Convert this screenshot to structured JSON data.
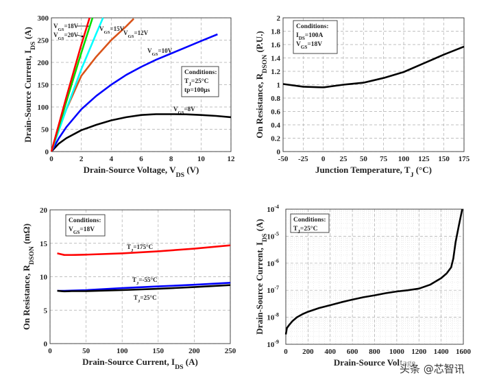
{
  "chart_data": [
    {
      "type": "line",
      "xlabel": [
        "Drain-Source Voltage, V",
        [
          "DS"
        ],
        " (V)"
      ],
      "ylabel": [
        "Drain-Source Current, I",
        [
          "DS"
        ],
        " (A)"
      ],
      "xlim": [
        0,
        12
      ],
      "ylim": [
        0,
        300
      ],
      "xticks": [
        0,
        2,
        4,
        6,
        8,
        10,
        12
      ],
      "yticks": [
        0,
        50,
        100,
        150,
        200,
        250,
        300
      ],
      "grid": true,
      "conditions": [
        [
          "Conditions:"
        ],
        [
          "T",
          [
            "J"
          ],
          "=25°C"
        ],
        [
          "tp=100μs"
        ]
      ],
      "series": [
        {
          "name": [
            "V",
            [
              "GS"
            ],
            "=8V"
          ],
          "color": "#000000",
          "x": [
            0,
            0.5,
            1,
            2,
            3,
            4,
            5,
            6,
            7,
            8,
            9,
            10,
            11,
            12
          ],
          "y": [
            0,
            18,
            30,
            48,
            60,
            70,
            77,
            82,
            84,
            84,
            83.5,
            82,
            80,
            77
          ]
        },
        {
          "name": [
            "V",
            [
              "GS"
            ],
            "=10V"
          ],
          "color": "#0000ff",
          "x": [
            0,
            0.5,
            1,
            2,
            3,
            4,
            5,
            6,
            7,
            8,
            9,
            10,
            11.1
          ],
          "y": [
            0,
            30,
            55,
            95,
            125,
            150,
            172,
            190,
            206,
            220,
            234,
            248,
            263
          ]
        },
        {
          "name": [
            "V",
            [
              "GS"
            ],
            "=12V"
          ],
          "color": "#d95319",
          "x": [
            0,
            0.5,
            1,
            2,
            3,
            4,
            5,
            5.5
          ],
          "y": [
            0,
            52,
            95,
            170,
            213,
            250,
            281,
            298
          ]
        },
        {
          "name": [
            "V",
            [
              "GS"
            ],
            "=15V"
          ],
          "color": "#00ffff",
          "x": [
            0,
            1,
            2,
            3,
            3.45
          ],
          "y": [
            0,
            95,
            185,
            265,
            300
          ]
        },
        {
          "name": [
            "V",
            [
              "GS"
            ],
            "=18V"
          ],
          "color": "#00dd00",
          "x": [
            0,
            1,
            2,
            2.75
          ],
          "y": [
            0,
            112,
            222,
            300
          ]
        },
        {
          "name": [
            "V",
            [
              "GS"
            ],
            "=20V"
          ],
          "color": "#ff0000",
          "x": [
            0,
            1,
            2,
            2.55
          ],
          "y": [
            0,
            122,
            240,
            300
          ]
        }
      ]
    },
    {
      "type": "line",
      "xlabel": [
        "Junction Temperature, T",
        [
          "J"
        ],
        " (°C)"
      ],
      "ylabel": [
        "On Resistance, R",
        [
          "DSON"
        ],
        " (P.U.)"
      ],
      "xlim": [
        -50,
        175
      ],
      "ylim": [
        0,
        2
      ],
      "xticks": [
        -50,
        -25,
        0,
        25,
        50,
        75,
        100,
        125,
        150,
        175
      ],
      "yticks": [
        0,
        0.2,
        0.4,
        0.6,
        0.8,
        1,
        1.2,
        1.4,
        1.6,
        1.8,
        2
      ],
      "grid": true,
      "conditions": [
        [
          "Conditions:"
        ],
        [
          "I",
          [
            "DS"
          ],
          "=100A"
        ],
        [
          "V",
          [
            "GS"
          ],
          "=18V"
        ]
      ],
      "series": [
        {
          "color": "#000000",
          "x": [
            -50,
            -25,
            0,
            25,
            50,
            75,
            100,
            125,
            150,
            175
          ],
          "y": [
            1.01,
            0.97,
            0.96,
            1.0,
            1.03,
            1.1,
            1.19,
            1.32,
            1.45,
            1.57
          ]
        }
      ]
    },
    {
      "type": "line",
      "xlabel": [
        "Drain-Source Current, I",
        [
          "DS"
        ],
        " (A)"
      ],
      "ylabel": [
        "On Resistance, R",
        [
          "DSON"
        ],
        " (mΩ)"
      ],
      "xlim": [
        0,
        250
      ],
      "ylim": [
        0,
        20
      ],
      "xticks": [
        0,
        50,
        100,
        150,
        200,
        250
      ],
      "yticks": [
        0,
        5,
        10,
        15,
        20
      ],
      "grid": true,
      "conditions": [
        [
          "Conditions:"
        ],
        [
          "V",
          [
            "GS"
          ],
          "=18V"
        ]
      ],
      "series": [
        {
          "name": [
            "T",
            [
              "J"
            ],
            "=175°C"
          ],
          "color": "#ff0000",
          "x": [
            10,
            20,
            30,
            50,
            100,
            150,
            200,
            250
          ],
          "y": [
            13.5,
            13.25,
            13.25,
            13.3,
            13.5,
            13.8,
            14.2,
            14.7
          ]
        },
        {
          "name": [
            "T",
            [
              "J"
            ],
            "=-55°C"
          ],
          "color": "#0000ff",
          "x": [
            10,
            20,
            50,
            100,
            150,
            200,
            250
          ],
          "y": [
            7.9,
            7.9,
            8.0,
            8.3,
            8.55,
            8.8,
            9.1
          ]
        },
        {
          "name": [
            "T",
            [
              "J"
            ],
            "=25°C"
          ],
          "color": "#000000",
          "x": [
            10,
            20,
            30,
            50,
            100,
            150,
            200,
            250
          ],
          "y": [
            7.9,
            7.8,
            7.85,
            7.85,
            8.0,
            8.2,
            8.45,
            8.75
          ]
        }
      ]
    },
    {
      "type": "line",
      "xlabel": [
        "Drain-Source Voltage"
      ],
      "ylabel": [
        "Drain-Source Current, I",
        [
          "DS"
        ],
        " (A)"
      ],
      "xlim": [
        0,
        1600
      ],
      "ylim": [
        1e-09,
        0.0001
      ],
      "yscale": "log",
      "xticks": [
        0,
        200,
        400,
        600,
        800,
        1000,
        1200,
        1400,
        1600
      ],
      "yticks": [
        1e-09,
        1e-08,
        1e-07,
        1e-06,
        1e-05,
        0.0001
      ],
      "grid": true,
      "minor_grid": true,
      "conditions": [
        [
          "Conditions:"
        ],
        [
          "T",
          [
            "J"
          ],
          "=25°C"
        ]
      ],
      "series": [
        {
          "color": "#000000",
          "x": [
            0,
            10,
            30,
            60,
            100,
            150,
            200,
            300,
            400,
            500,
            600,
            700,
            800,
            900,
            1000,
            1100,
            1200,
            1300,
            1400,
            1450,
            1490,
            1510,
            1530,
            1560,
            1590
          ],
          "y": [
            2.3e-09,
            4e-09,
            5.2e-09,
            7.2e-09,
            1e-08,
            1.3e-08,
            1.6e-08,
            2.2e-08,
            2.8e-08,
            3.6e-08,
            4.5e-08,
            5.5e-08,
            6.5e-08,
            7.8e-08,
            9e-08,
            1e-07,
            1.15e-07,
            1.6e-07,
            2.8e-07,
            4.2e-07,
            7e-07,
            1.5e-06,
            6e-06,
            2.5e-05,
            0.0001
          ]
        }
      ]
    }
  ],
  "watermark": "头条 @芯智讯"
}
